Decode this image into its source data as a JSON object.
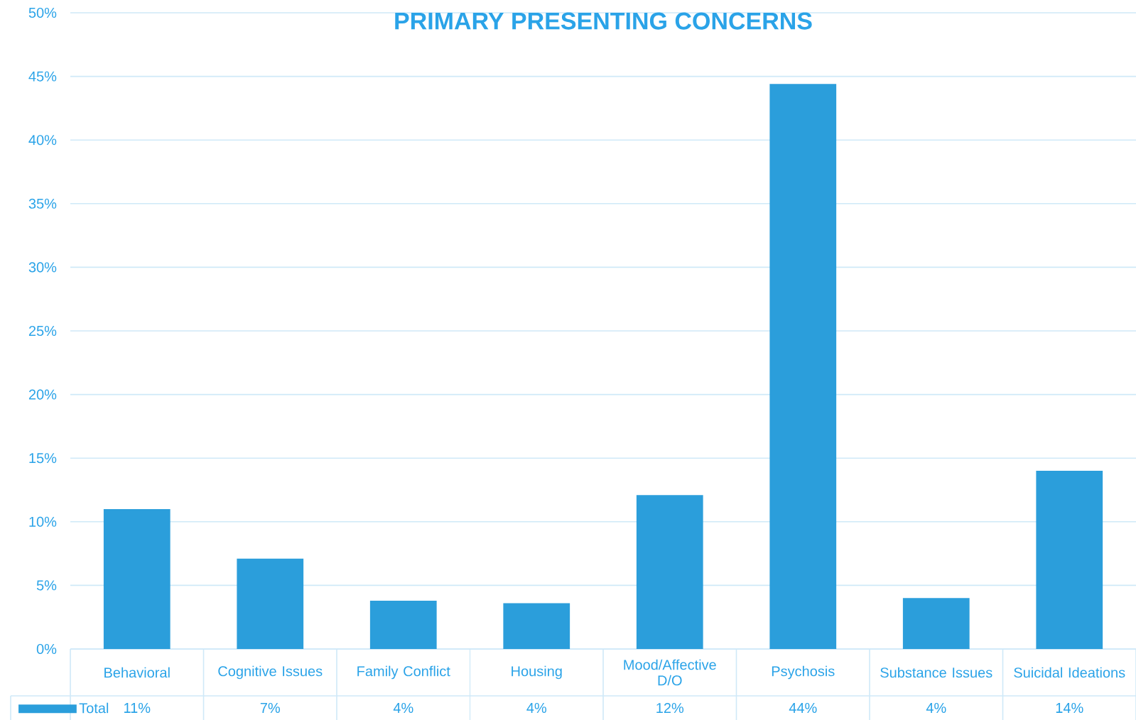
{
  "chart_data": {
    "type": "bar",
    "title": "PRIMARY PRESENTING CONCERNS",
    "categories": [
      "Behavioral",
      "Cognitive Issues",
      "Family Conflict",
      "Housing",
      "Mood/Affective D/O",
      "Psychosis",
      "Substance Issues",
      "Suicidal Ideations"
    ],
    "series": [
      {
        "name": "Total",
        "color": "#2b9edb",
        "values": [
          11.0,
          7.1,
          3.8,
          3.6,
          12.1,
          44.4,
          4.0,
          14.0
        ],
        "value_labels": [
          "11%",
          "7%",
          "4%",
          "4%",
          "12%",
          "44%",
          "4%",
          "14%"
        ]
      }
    ],
    "ylim": [
      0,
      50
    ],
    "yticks": [
      {
        "value": 0,
        "label": "0%"
      },
      {
        "value": 5,
        "label": "5%"
      },
      {
        "value": 10,
        "label": "10%"
      },
      {
        "value": 15,
        "label": "15%"
      },
      {
        "value": 20,
        "label": "20%"
      },
      {
        "value": 25,
        "label": "25%"
      },
      {
        "value": 30,
        "label": "30%"
      },
      {
        "value": 35,
        "label": "35%"
      },
      {
        "value": 40,
        "label": "40%"
      },
      {
        "value": 45,
        "label": "45%"
      },
      {
        "value": 50,
        "label": "50%"
      }
    ],
    "grid": "y"
  }
}
